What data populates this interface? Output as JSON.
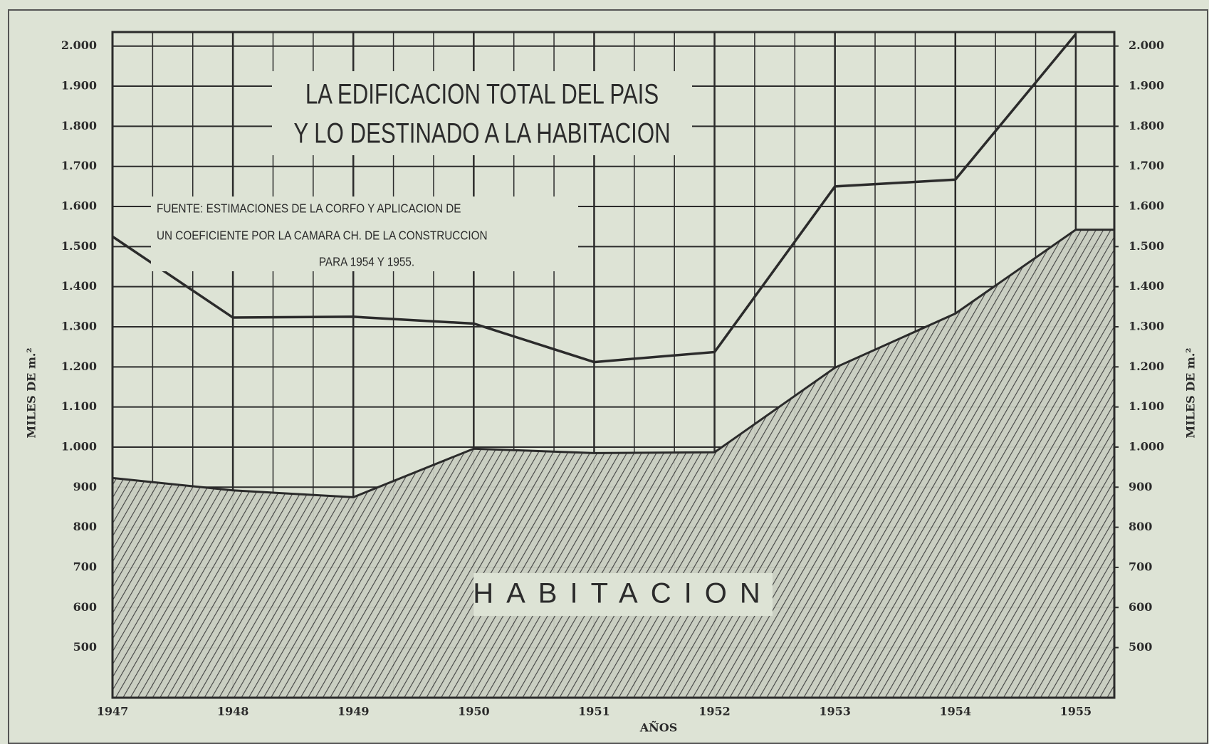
{
  "chart_data": {
    "type": "line",
    "title": [
      "LA EDIFICACION TOTAL DEL PAIS",
      "Y LO DESTINADO A LA HABITACION"
    ],
    "annotation": [
      "FUENTE: ESTIMACIONES DE LA CORFO Y APLICACION DE",
      "UN COEFICIENTE POR LA CAMARA CH. DE LA CONSTRUCCION",
      "PARA 1954 Y 1955."
    ],
    "xlabel": "AÑOS",
    "ylabel": "MILES DE m.²",
    "y2label": "MILES DE m.²",
    "x": [
      1947,
      1948,
      1949,
      1950,
      1951,
      1952,
      1953,
      1954,
      1955
    ],
    "xlim": [
      1947,
      1955.32
    ],
    "xticks": [
      1947,
      1948,
      1949,
      1950,
      1951,
      1952,
      1953,
      1954,
      1955
    ],
    "series": [
      {
        "type": "line",
        "color": "#2b2b2b",
        "values": [
          1525,
          1323,
          1325,
          1308,
          1212,
          1237,
          1650,
          1667,
          2030
        ]
      },
      {
        "type": "area",
        "name": "HABITACION",
        "color": "#2b2b2b",
        "values": [
          923,
          892,
          875,
          996,
          985,
          987,
          1198,
          1333,
          1542
        ]
      }
    ],
    "ylim": [
      375,
      2035
    ],
    "yticks": [
      500,
      600,
      700,
      800,
      900,
      {
        "value": 1000,
        "label": "1.000"
      },
      {
        "value": 1100,
        "label": "1.100"
      },
      {
        "value": 1200,
        "label": "1.200"
      },
      {
        "value": 1300,
        "label": "1.300"
      },
      {
        "value": 1400,
        "label": "1.400"
      },
      {
        "value": 1500,
        "label": "1.500"
      },
      {
        "value": 1600,
        "label": "1.600"
      },
      {
        "value": 1700,
        "label": "1.700"
      },
      {
        "value": 1800,
        "label": "1.800"
      },
      {
        "value": 1900,
        "label": "1.900"
      },
      {
        "value": 2000,
        "label": "2.000"
      }
    ],
    "y2lim": [
      375,
      2035
    ],
    "y2ticks": [
      500,
      600,
      700,
      800,
      900,
      {
        "value": 1000,
        "label": "1.000"
      },
      {
        "value": 1100,
        "label": "1.100"
      },
      {
        "value": 1200,
        "label": "1.200"
      },
      {
        "value": 1300,
        "label": "1.300"
      },
      {
        "value": 1400,
        "label": "1.400"
      },
      {
        "value": 1500,
        "label": "1.500"
      },
      {
        "value": 1600,
        "label": "1.600"
      },
      {
        "value": 1700,
        "label": "1.700"
      },
      {
        "value": 1800,
        "label": "1.800"
      },
      {
        "value": 1900,
        "label": "1.900"
      },
      {
        "value": 2000,
        "label": "2.000"
      }
    ],
    "grid": true
  }
}
